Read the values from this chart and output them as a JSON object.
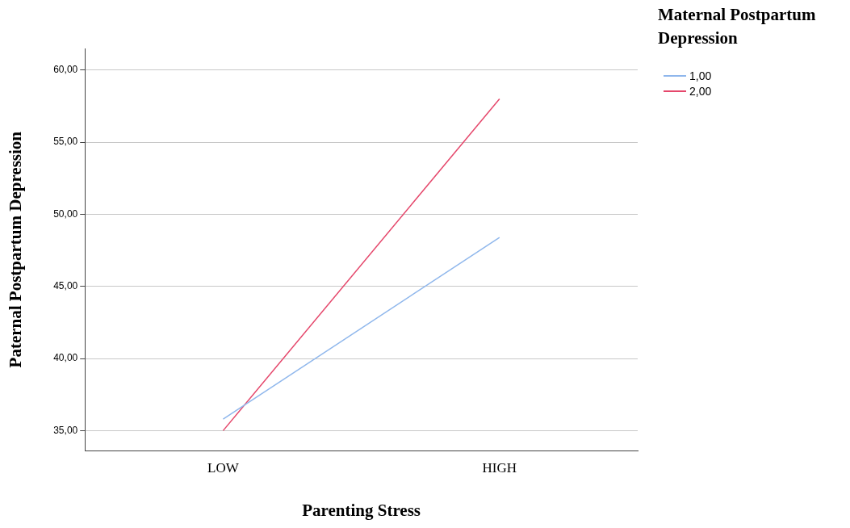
{
  "chart_data": {
    "type": "line",
    "xlabel": "Parenting Stress",
    "ylabel": "Paternal Postpartum Depression",
    "legend_title": "Maternal Postpartum Depression",
    "categories": [
      "LOW",
      "HIGH"
    ],
    "series": [
      {
        "name": "1,00",
        "color": "#8fb7ec",
        "values": [
          35.8,
          48.4
        ]
      },
      {
        "name": "2,00",
        "color": "#e5476b",
        "values": [
          35.0,
          58.0
        ]
      }
    ],
    "ylim": [
      33.6,
      61.5
    ],
    "yticks": [
      {
        "value": 35,
        "label": "35,00"
      },
      {
        "value": 40,
        "label": "40,00"
      },
      {
        "value": 45,
        "label": "45,00"
      },
      {
        "value": 50,
        "label": "50,00"
      },
      {
        "value": 55,
        "label": "55,00"
      },
      {
        "value": 60,
        "label": "60,00"
      }
    ],
    "grid": "y",
    "legend": "top right",
    "marker": "none",
    "line_style": "solid"
  }
}
